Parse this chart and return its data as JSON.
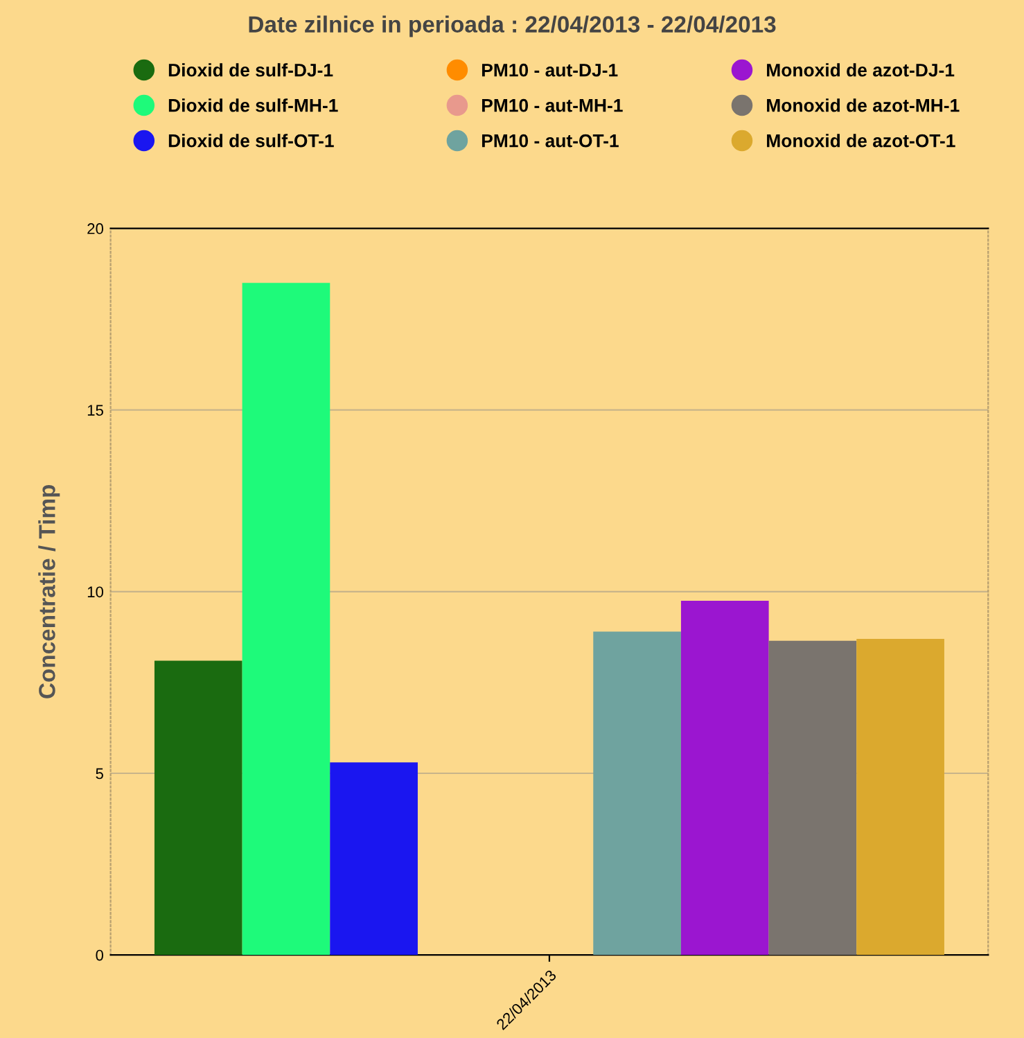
{
  "chart_data": {
    "type": "bar",
    "title": "Date zilnice in perioada : 22/04/2013 - 22/04/2013",
    "ylabel": "Concentratie / Timp",
    "categories": [
      "22/04/2013"
    ],
    "series": [
      {
        "name": "Dioxid de sulf-DJ-1",
        "color": "#1a6b10",
        "values": [
          8.1
        ]
      },
      {
        "name": "Dioxid de sulf-MH-1",
        "color": "#1efa7a",
        "values": [
          18.5
        ]
      },
      {
        "name": "Dioxid de sulf-OT-1",
        "color": "#1a16f0",
        "values": [
          5.3
        ]
      },
      {
        "name": "PM10 - aut-DJ-1",
        "color": "#ff8c00",
        "values": [
          null
        ]
      },
      {
        "name": "PM10 - aut-MH-1",
        "color": "#e8998d",
        "values": [
          null
        ]
      },
      {
        "name": "PM10 - aut-OT-1",
        "color": "#6fa39f",
        "values": [
          8.9
        ]
      },
      {
        "name": "Monoxid de azot-DJ-1",
        "color": "#9b16d0",
        "values": [
          9.75
        ]
      },
      {
        "name": "Monoxid de azot-MH-1",
        "color": "#7a746e",
        "values": [
          8.65
        ]
      },
      {
        "name": "Monoxid de azot-OT-1",
        "color": "#dba92e",
        "values": [
          8.7
        ]
      }
    ],
    "ylim": [
      0,
      20
    ],
    "yticks": [
      0,
      5,
      10,
      15,
      20
    ],
    "grid": "y",
    "legend": "top"
  }
}
